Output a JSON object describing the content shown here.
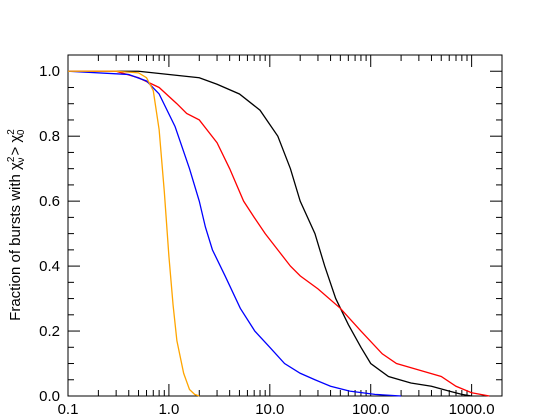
{
  "chart_data": {
    "type": "line",
    "ylabel": {
      "text": "Fraction of bursts with",
      "symbol1": "χ",
      "sup1": "2",
      "sub1": "ν",
      "relation": ">",
      "symbol2": "χ",
      "sup2": "2",
      "sub2": "0"
    },
    "xscale": "log",
    "xlim": [
      0.1,
      2000
    ],
    "ylim": [
      0,
      1.05
    ],
    "xticks": [
      0.1,
      {
        "value": 1,
        "label": "1.0"
      },
      {
        "value": 10,
        "label": "10.0"
      },
      {
        "value": 100,
        "label": "100.0"
      },
      {
        "value": 1000,
        "label": "1000.0"
      }
    ],
    "yticks": [
      {
        "value": 0,
        "label": "0.0"
      },
      0.2,
      0.4,
      0.6,
      0.8,
      {
        "value": 1,
        "label": "1.0"
      }
    ],
    "series": [
      {
        "color": "#000000",
        "x": [
          0.1,
          0.5,
          1,
          2,
          3,
          5,
          8,
          12,
          16,
          20,
          28,
          35,
          45,
          60,
          80,
          100,
          150,
          250,
          400,
          600,
          800,
          1000
        ],
        "values": [
          1.0,
          1.0,
          0.99,
          0.98,
          0.96,
          0.93,
          0.88,
          0.8,
          0.7,
          0.6,
          0.5,
          0.4,
          0.3,
          0.22,
          0.15,
          0.1,
          0.06,
          0.04,
          0.03,
          0.015,
          0.005,
          0.0
        ]
      },
      {
        "color": "#ff0000",
        "x": [
          0.1,
          0.3,
          0.5,
          0.8,
          1.2,
          1.5,
          2,
          3,
          4,
          5.5,
          7,
          9,
          12,
          16,
          20,
          30,
          50,
          80,
          130,
          180,
          300,
          500,
          700,
          1000,
          1500
        ],
        "values": [
          1.0,
          1.0,
          0.98,
          0.95,
          0.9,
          0.87,
          0.85,
          0.78,
          0.7,
          0.6,
          0.55,
          0.5,
          0.45,
          0.4,
          0.37,
          0.33,
          0.27,
          0.2,
          0.13,
          0.1,
          0.08,
          0.06,
          0.03,
          0.01,
          0.0
        ]
      },
      {
        "color": "#0000ff",
        "x": [
          0.1,
          0.4,
          0.6,
          0.8,
          1.15,
          1.6,
          2,
          2.3,
          2.7,
          3.6,
          5.1,
          7.1,
          10,
          14,
          20,
          28,
          40,
          62,
          110,
          200
        ],
        "values": [
          1.0,
          0.99,
          0.97,
          0.93,
          0.83,
          0.7,
          0.6,
          0.52,
          0.45,
          0.37,
          0.27,
          0.2,
          0.15,
          0.1,
          0.07,
          0.05,
          0.03,
          0.015,
          0.005,
          0.0
        ]
      },
      {
        "color": "#ffa500",
        "x": [
          0.1,
          0.3,
          0.5,
          0.6,
          0.7,
          0.8,
          0.9,
          1.0,
          1.1,
          1.2,
          1.4,
          1.6,
          1.8,
          2.0
        ],
        "values": [
          1.0,
          1.0,
          0.995,
          0.98,
          0.94,
          0.82,
          0.63,
          0.43,
          0.28,
          0.17,
          0.07,
          0.02,
          0.005,
          0.0
        ]
      }
    ]
  }
}
